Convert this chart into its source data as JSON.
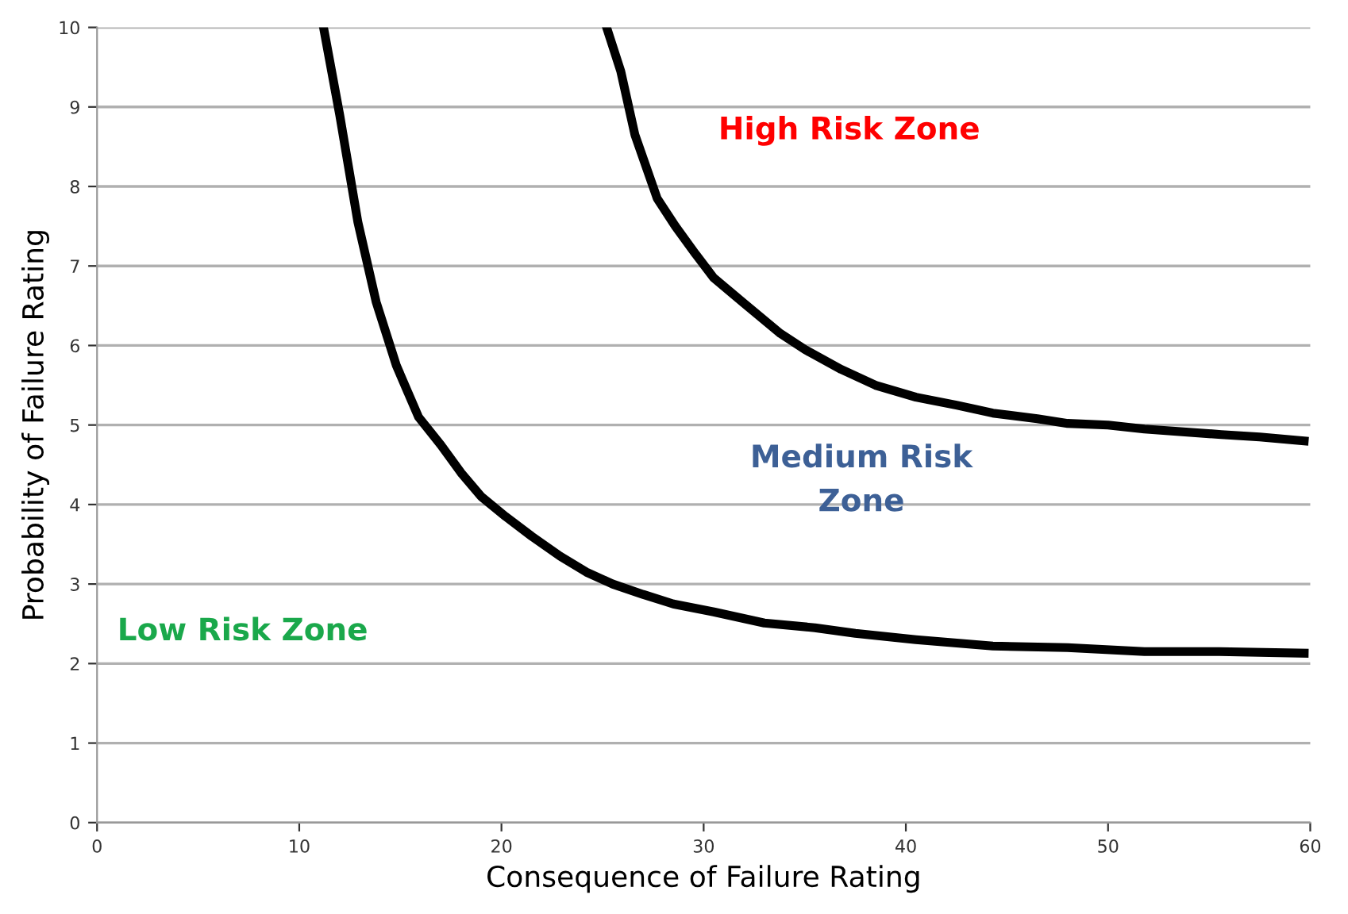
{
  "chart_data": {
    "type": "line",
    "xlabel": "Consequence of Failure Rating",
    "ylabel": "Probability of Failure Rating",
    "xlim": [
      0,
      60
    ],
    "xticks": [
      0,
      10,
      20,
      30,
      40,
      50,
      60
    ],
    "ylim": [
      0,
      10
    ],
    "yticks": [
      0,
      1,
      2,
      3,
      4,
      5,
      6,
      7,
      8,
      9,
      10
    ],
    "grid": "y",
    "marker": "none",
    "line_style": "solid",
    "series": [
      {
        "color": "#000000",
        "x": [
          11.2,
          12.0,
          12.9,
          13.8,
          14.8,
          15.9,
          17.0,
          18.0,
          19.0,
          20.2,
          21.5,
          22.9,
          24.2,
          25.5,
          27.0,
          28.5,
          30.5,
          33.0,
          35.5,
          37.5,
          40.5,
          44.3,
          48.0,
          51.8,
          55.5,
          59.7
        ],
        "values": [
          10.0,
          8.9,
          7.55,
          6.55,
          5.75,
          5.1,
          4.75,
          4.4,
          4.1,
          3.85,
          3.6,
          3.35,
          3.15,
          3.0,
          2.87,
          2.75,
          2.65,
          2.51,
          2.45,
          2.38,
          2.3,
          2.22,
          2.2,
          2.15,
          2.15,
          2.13
        ]
      },
      {
        "color": "#000000",
        "x": [
          25.2,
          25.9,
          26.6,
          27.7,
          28.6,
          29.6,
          30.5,
          31.9,
          33.8,
          35.0,
          36.8,
          38.5,
          40.5,
          42.5,
          44.3,
          46.5,
          48.0,
          50.0,
          51.8,
          55.6,
          57.5,
          59.7
        ],
        "values": [
          10.0,
          9.45,
          8.65,
          7.85,
          7.5,
          7.15,
          6.85,
          6.55,
          6.15,
          5.95,
          5.7,
          5.5,
          5.35,
          5.25,
          5.15,
          5.08,
          5.02,
          5.0,
          4.95,
          4.88,
          4.85,
          4.8
        ]
      }
    ],
    "annotations": [
      "High Risk Zone",
      "Medium Risk\nZone",
      "Low Risk Zone"
    ]
  }
}
